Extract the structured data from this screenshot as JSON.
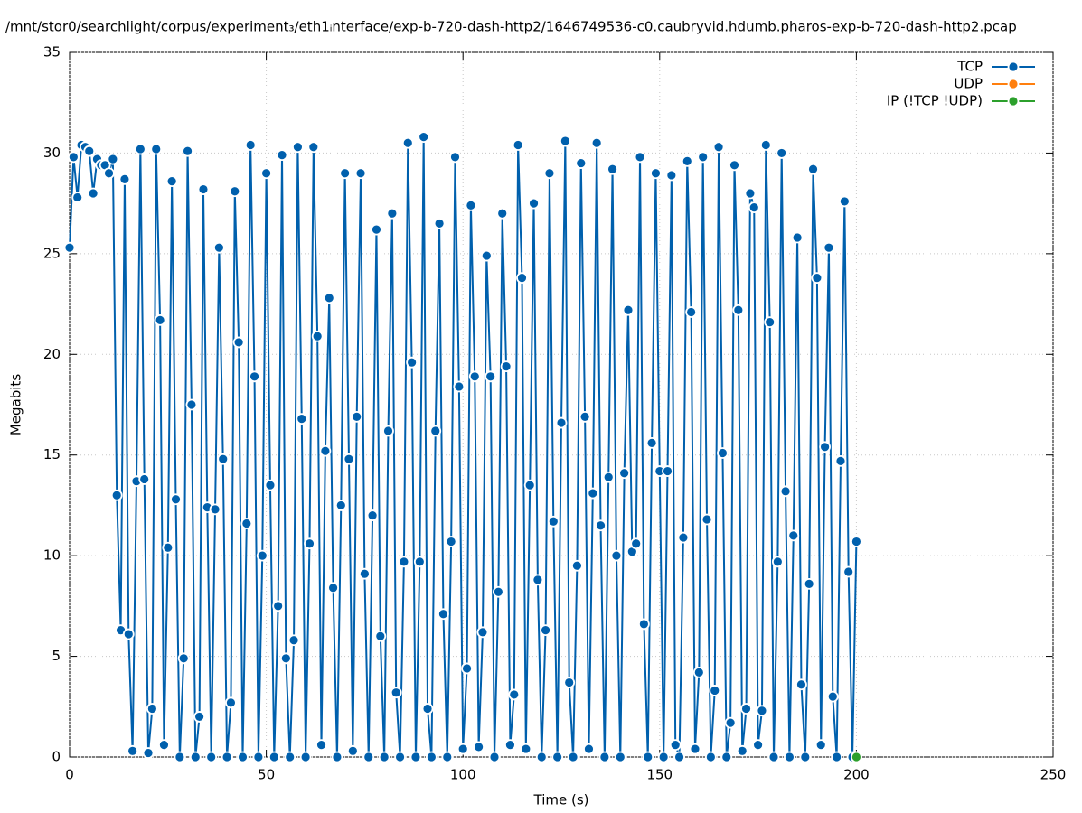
{
  "chart_data": {
    "type": "line",
    "title": "/mnt/stor0/searchlight/corpus/experiment₃/eth1ᵢnterface/exp-b-720-dash-http2/1646749536-c0.caubryvid.hdumb.pharos-exp-b-720-dash-http2.pcap",
    "xlabel": "Time (s)",
    "ylabel": "Megabits",
    "xlim": [
      0,
      250
    ],
    "xticks": [
      0,
      50,
      100,
      150,
      200,
      250
    ],
    "ylim": [
      0,
      35
    ],
    "yticks": [
      0,
      5,
      10,
      15,
      20,
      25,
      30,
      35
    ],
    "grid": true,
    "legend": "top-right",
    "series": [
      {
        "name": "TCP",
        "color": "#0060ad",
        "x": [
          0,
          1,
          2,
          3,
          4,
          5,
          6,
          7,
          8,
          9,
          10,
          11,
          12,
          13,
          14,
          15,
          16,
          17,
          18,
          19,
          20,
          21,
          22,
          23,
          24,
          25,
          26,
          27,
          28,
          29,
          30,
          31,
          32,
          33,
          34,
          35,
          36,
          37,
          38,
          39,
          40,
          41,
          42,
          43,
          44,
          45,
          46,
          47,
          48,
          49,
          50,
          51,
          52,
          53,
          54,
          55,
          56,
          57,
          58,
          59,
          60,
          61,
          62,
          63,
          64,
          65,
          66,
          67,
          68,
          69,
          70,
          71,
          72,
          73,
          74,
          75,
          76,
          77,
          78,
          79,
          80,
          81,
          82,
          83,
          84,
          85,
          86,
          87,
          88,
          89,
          90,
          91,
          92,
          93,
          94,
          95,
          96,
          97,
          98,
          99,
          100,
          101,
          102,
          103,
          104,
          105,
          106,
          107,
          108,
          109,
          110,
          111,
          112,
          113,
          114,
          115,
          116,
          117,
          118,
          119,
          120,
          121,
          122,
          123,
          124,
          125,
          126,
          127,
          128,
          129,
          130,
          131,
          132,
          133,
          134,
          135,
          136,
          137,
          138,
          139,
          140,
          141,
          142,
          143,
          144,
          145,
          146,
          147,
          148,
          149,
          150,
          151,
          152,
          153,
          154,
          155,
          156,
          157,
          158,
          159,
          160,
          161,
          162,
          163,
          164,
          165,
          166,
          167,
          168,
          169,
          170,
          171,
          172,
          173,
          174,
          175,
          176,
          177,
          178,
          179,
          180,
          181,
          182,
          183,
          184,
          185,
          186,
          187,
          188,
          189,
          190,
          191,
          192,
          193,
          194,
          195,
          196,
          197,
          198,
          199,
          200
        ],
        "values": [
          25.3,
          29.8,
          27.8,
          30.4,
          30.3,
          30.1,
          28.0,
          29.7,
          29.4,
          29.4,
          29.0,
          29.7,
          13.0,
          6.3,
          28.7,
          6.1,
          0.3,
          13.7,
          30.2,
          13.8,
          0.2,
          2.4,
          30.2,
          21.7,
          0.6,
          10.4,
          28.6,
          12.8,
          0,
          4.9,
          30.1,
          17.5,
          0,
          2.0,
          28.2,
          12.4,
          0,
          12.3,
          25.3,
          14.8,
          0,
          2.7,
          28.1,
          20.6,
          0,
          11.6,
          30.4,
          18.9,
          0,
          10.0,
          29.0,
          13.5,
          0,
          7.5,
          29.9,
          4.9,
          0,
          5.8,
          30.3,
          16.8,
          0,
          10.6,
          30.3,
          20.9,
          0.6,
          15.2,
          22.8,
          8.4,
          0,
          12.5,
          29.0,
          14.8,
          0.3,
          16.9,
          29.0,
          9.1,
          0,
          12.0,
          26.2,
          6.0,
          0,
          16.2,
          27.0,
          3.2,
          0,
          9.7,
          30.5,
          19.6,
          0,
          9.7,
          30.8,
          2.4,
          0,
          16.2,
          26.5,
          7.1,
          0,
          10.7,
          29.8,
          18.4,
          0.4,
          4.4,
          27.4,
          18.9,
          0.5,
          6.2,
          24.9,
          18.9,
          0,
          8.2,
          27.0,
          19.4,
          0.6,
          3.1,
          30.4,
          23.8,
          0.4,
          13.5,
          27.5,
          8.8,
          0,
          6.3,
          29.0,
          11.7,
          0,
          16.6,
          30.6,
          3.7,
          0,
          9.5,
          29.5,
          16.9,
          0.4,
          13.1,
          30.5,
          11.5,
          0,
          13.9,
          29.2,
          10.0,
          0,
          14.1,
          22.2,
          10.2,
          10.6,
          29.8,
          6.6,
          0,
          15.6,
          29.0,
          14.2,
          0,
          14.2,
          28.9,
          0.6,
          0,
          10.9,
          29.6,
          22.1,
          0.4,
          4.2,
          29.8,
          11.8,
          0,
          3.3,
          30.3,
          15.1,
          0,
          1.7,
          29.4,
          22.2,
          0.3,
          2.4,
          28.0,
          27.3,
          0.6,
          2.3,
          30.4,
          21.6,
          0,
          9.7,
          30.0,
          13.2,
          0,
          11.0,
          25.8,
          3.6,
          0,
          8.6,
          29.2,
          23.8,
          0.6,
          15.4,
          25.3,
          3.0,
          0,
          14.7,
          27.6,
          9.2,
          0,
          10.7
        ]
      },
      {
        "name": "UDP",
        "color": "#ff7f0e",
        "x": [
          200
        ],
        "values": [
          0
        ]
      },
      {
        "name": "IP (!TCP  !UDP)",
        "color": "#2ca02c",
        "x": [
          200
        ],
        "values": [
          0
        ]
      }
    ]
  }
}
